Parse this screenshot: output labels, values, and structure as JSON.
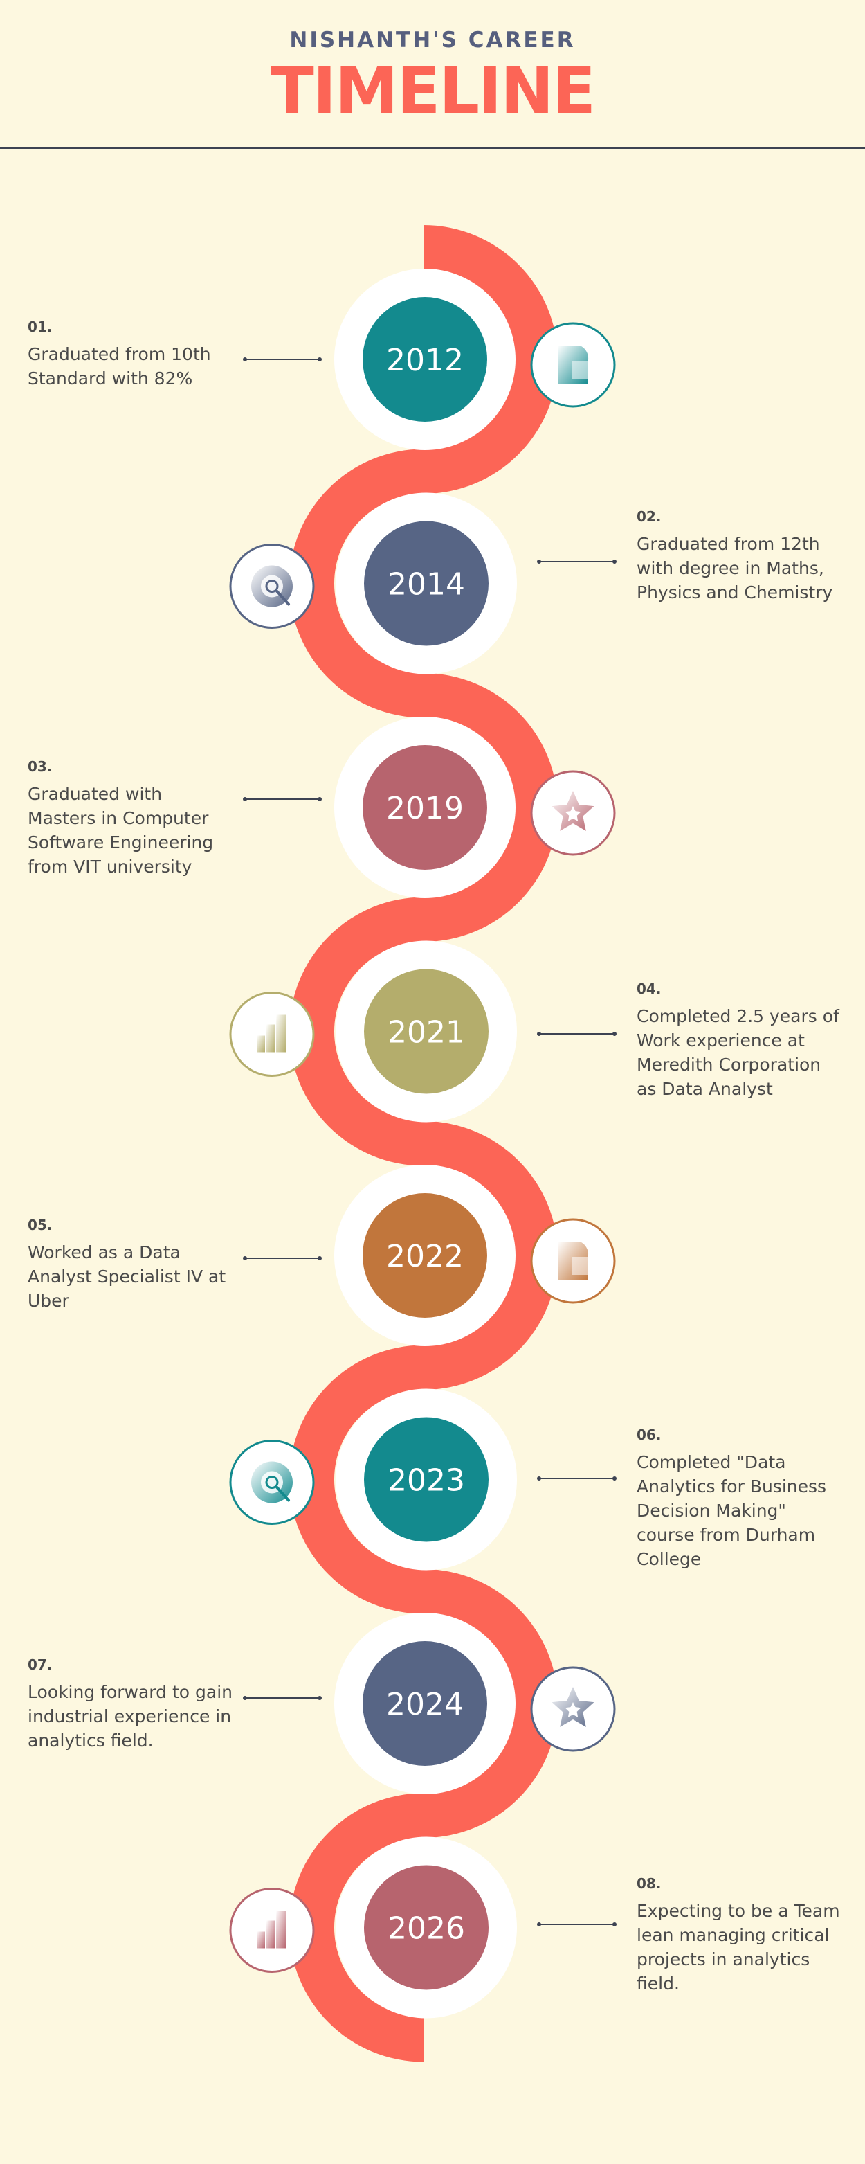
{
  "header": {
    "subtitle": "NISHANTH'S CAREER",
    "title": "TIMELINE"
  },
  "colors": {
    "background": "#fdf8e0",
    "wave": "#fc6556",
    "line": "#3d4352"
  },
  "events": [
    {
      "num": "01.",
      "year": "2012",
      "text": "Graduated from 10th Standard with 82%",
      "color": "#138a8e",
      "icon": "pie-chart-icon"
    },
    {
      "num": "02.",
      "year": "2014",
      "text": "Graduated from 12th with degree in Maths, Physics and Chemistry",
      "color": "#576585",
      "icon": "target-search-icon"
    },
    {
      "num": "03.",
      "year": "2019",
      "text": "Graduated with Masters in Computer Software Engineering from VIT university",
      "color": "#b7646e",
      "icon": "star-icon"
    },
    {
      "num": "04.",
      "year": "2021",
      "text": "Completed 2.5 years of Work experience at Meredith Corporation as Data Analyst",
      "color": "#b4ad6c",
      "icon": "bar-chart-icon"
    },
    {
      "num": "05.",
      "year": "2022",
      "text": "Worked as a Data Analyst Specialist IV at Uber",
      "color": "#c1763c",
      "icon": "pie-chart-icon"
    },
    {
      "num": "06.",
      "year": "2023",
      "text": "Completed \"Data Analytics for Business Decision Making\" course from Durham College",
      "color": "#138a8e",
      "icon": "target-search-icon"
    },
    {
      "num": "07.",
      "year": "2024",
      "text": "Looking forward to gain industrial experience in analytics field.",
      "color": "#576585",
      "icon": "star-icon"
    },
    {
      "num": "08.",
      "year": "2026",
      "text": "Expecting to be a Team lean managing critical projects in analytics field.",
      "color": "#b7646e",
      "icon": "bar-chart-icon"
    }
  ]
}
